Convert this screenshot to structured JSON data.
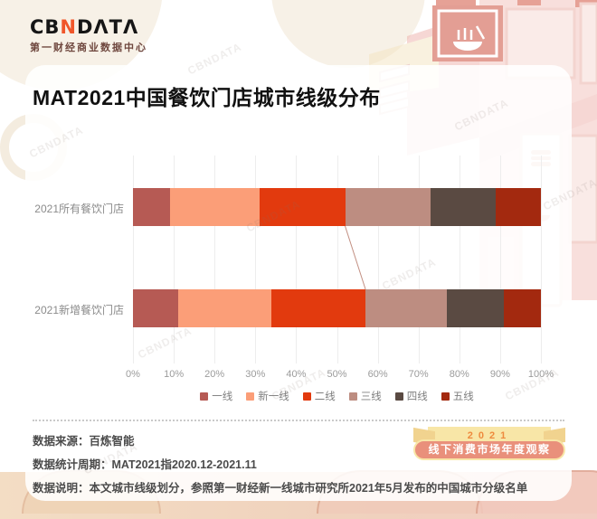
{
  "brand": {
    "logo_text_cb": "CB",
    "logo_text_n": "N",
    "logo_text_data": "DΛTΛ",
    "subtitle": "第一财经商业数据中心",
    "accent_color": "#f0562a"
  },
  "title": "MAT2021中国餐饮门店城市线级分布",
  "chart_data": {
    "type": "bar",
    "orientation": "horizontal",
    "stacked": true,
    "value_unit": "percent",
    "categories": [
      "2021所有餐饮门店",
      "2021新增餐饮门店"
    ],
    "series": [
      {
        "name": "一线",
        "color": "#b65a54",
        "values": [
          9,
          11
        ]
      },
      {
        "name": "新一线",
        "color": "#fb9e78",
        "values": [
          22,
          23
        ]
      },
      {
        "name": "二线",
        "color": "#e23a0e",
        "values": [
          21,
          23
        ]
      },
      {
        "name": "三线",
        "color": "#bd8d81",
        "values": [
          21,
          20
        ]
      },
      {
        "name": "四线",
        "color": "#5a4a42",
        "values": [
          16,
          14
        ]
      },
      {
        "name": "五线",
        "color": "#a3290f",
        "values": [
          11,
          9
        ]
      }
    ],
    "x_ticks": [
      "0%",
      "10%",
      "20%",
      "30%",
      "40%",
      "50%",
      "60%",
      "70%",
      "80%",
      "90%",
      "100%"
    ],
    "xlim": [
      0,
      100
    ],
    "grid": true,
    "legend_position": "bottom",
    "connector_after_series": "二线",
    "connector_color": "#c28f82"
  },
  "footer": {
    "line_source": "数据来源：百炼智能",
    "line_period": "数据统计周期：MAT2021指2020.12-2021.11",
    "line_note": "数据说明：本文城市线级划分，参照第一财经新一线城市研究所2021年5月发布的中国城市分级名单"
  },
  "badge": {
    "ribbon_year": "2021",
    "pill_text": "线下消费市场年度观察"
  },
  "watermark_text": "CBNDATA"
}
